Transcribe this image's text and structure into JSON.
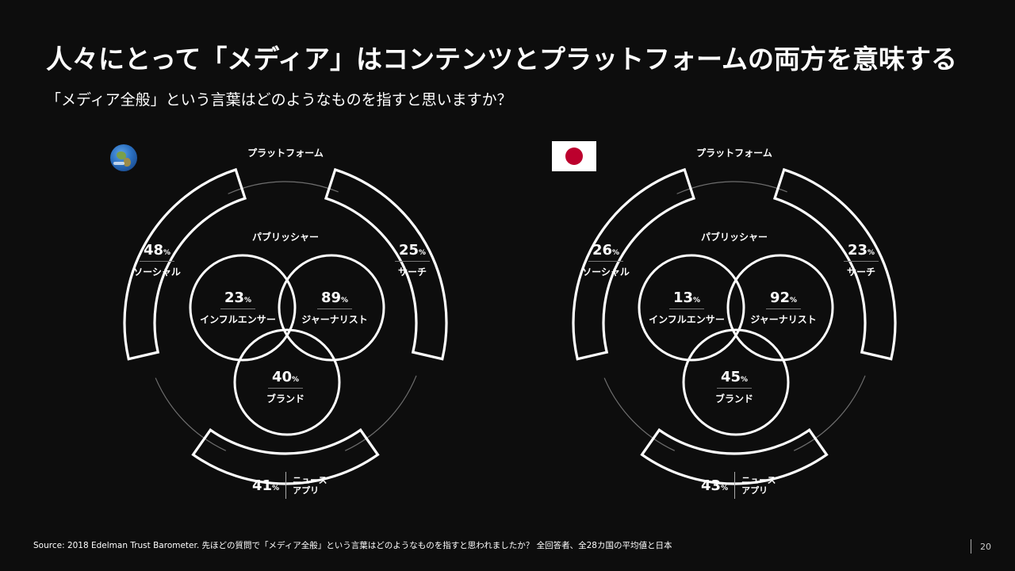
{
  "header": {
    "title": "人々にとって「メディア」はコンテンツとプラットフォームの両方を意味する",
    "subtitle": "「メディア全般」という言葉はどのようなものを指すと思いますか？"
  },
  "diagrams": [
    {
      "region": "global",
      "icon": "globe-icon",
      "platform_label": "プラットフォーム",
      "publisher_label": "パブリッシャー",
      "social": {
        "value": "48",
        "unit": "%",
        "label": "ソーシャル"
      },
      "search": {
        "value": "25",
        "unit": "%",
        "label": "サーチ"
      },
      "influencer": {
        "value": "23",
        "unit": "%",
        "label": "インフルエンサー"
      },
      "journalist": {
        "value": "89",
        "unit": "%",
        "label": "ジャーナリスト"
      },
      "brand": {
        "value": "40",
        "unit": "%",
        "label": "ブランド"
      },
      "news_app": {
        "value": "41",
        "unit": "%",
        "label_line1": "ニュース",
        "label_line2": "アプリ"
      }
    },
    {
      "region": "japan",
      "icon": "japan-flag-icon",
      "platform_label": "プラットフォーム",
      "publisher_label": "パブリッシャー",
      "social": {
        "value": "26",
        "unit": "%",
        "label": "ソーシャル"
      },
      "search": {
        "value": "23",
        "unit": "%",
        "label": "サーチ"
      },
      "influencer": {
        "value": "13",
        "unit": "%",
        "label": "インフルエンサー"
      },
      "journalist": {
        "value": "92",
        "unit": "%",
        "label": "ジャーナリスト"
      },
      "brand": {
        "value": "45",
        "unit": "%",
        "label": "ブランド"
      },
      "news_app": {
        "value": "43",
        "unit": "%",
        "label_line1": "ニュース",
        "label_line2": "アプリ"
      }
    }
  ],
  "footer": {
    "source": "Source: 2018 Edelman Trust Barometer. 先ほどの質問で「メディア全般」という言葉はどのようなものを指すと思われましたか？ 全回答者、全28カ国の平均値と日本",
    "page_number": "20"
  },
  "colors": {
    "background": "#0d0d0d",
    "foreground": "#ffffff",
    "flag_red": "#bc002d"
  }
}
